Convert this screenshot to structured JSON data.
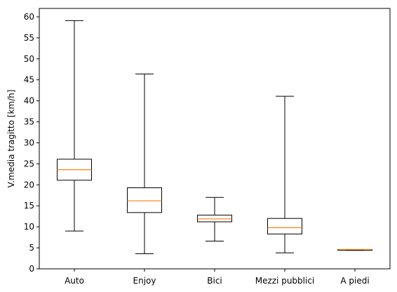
{
  "chart_data": {
    "type": "box",
    "title": "",
    "xlabel": "",
    "ylabel": "V.media tragitto [km/h]",
    "ylim": [
      0,
      62
    ],
    "yticks": [
      "0",
      "5",
      "10",
      "15",
      "20",
      "25",
      "30",
      "35",
      "40",
      "45",
      "50",
      "55",
      "60"
    ],
    "grid": false,
    "categories": [
      "Auto",
      "Enjoy",
      "Bici",
      "Mezzi pubblici",
      "A piedi"
    ],
    "boxes": [
      {
        "label": "Auto",
        "whisker_low": 9.0,
        "q1": 21.1,
        "median": 23.6,
        "q3": 26.1,
        "whisker_high": 59.1
      },
      {
        "label": "Enjoy",
        "whisker_low": 3.6,
        "q1": 13.4,
        "median": 16.2,
        "q3": 19.3,
        "whisker_high": 46.4
      },
      {
        "label": "Bici",
        "whisker_low": 6.6,
        "q1": 11.2,
        "median": 11.9,
        "q3": 12.8,
        "whisker_high": 17.0
      },
      {
        "label": "Mezzi pubblici",
        "whisker_low": 3.8,
        "q1": 8.3,
        "median": 9.8,
        "q3": 12.0,
        "whisker_high": 41.1
      },
      {
        "label": "A piedi",
        "whisker_low": 4.4,
        "q1": 4.4,
        "median": 4.6,
        "q3": 4.6,
        "whisker_high": 4.6
      }
    ],
    "colors": {
      "box": "#000000",
      "median": "#ff7f0e"
    }
  }
}
